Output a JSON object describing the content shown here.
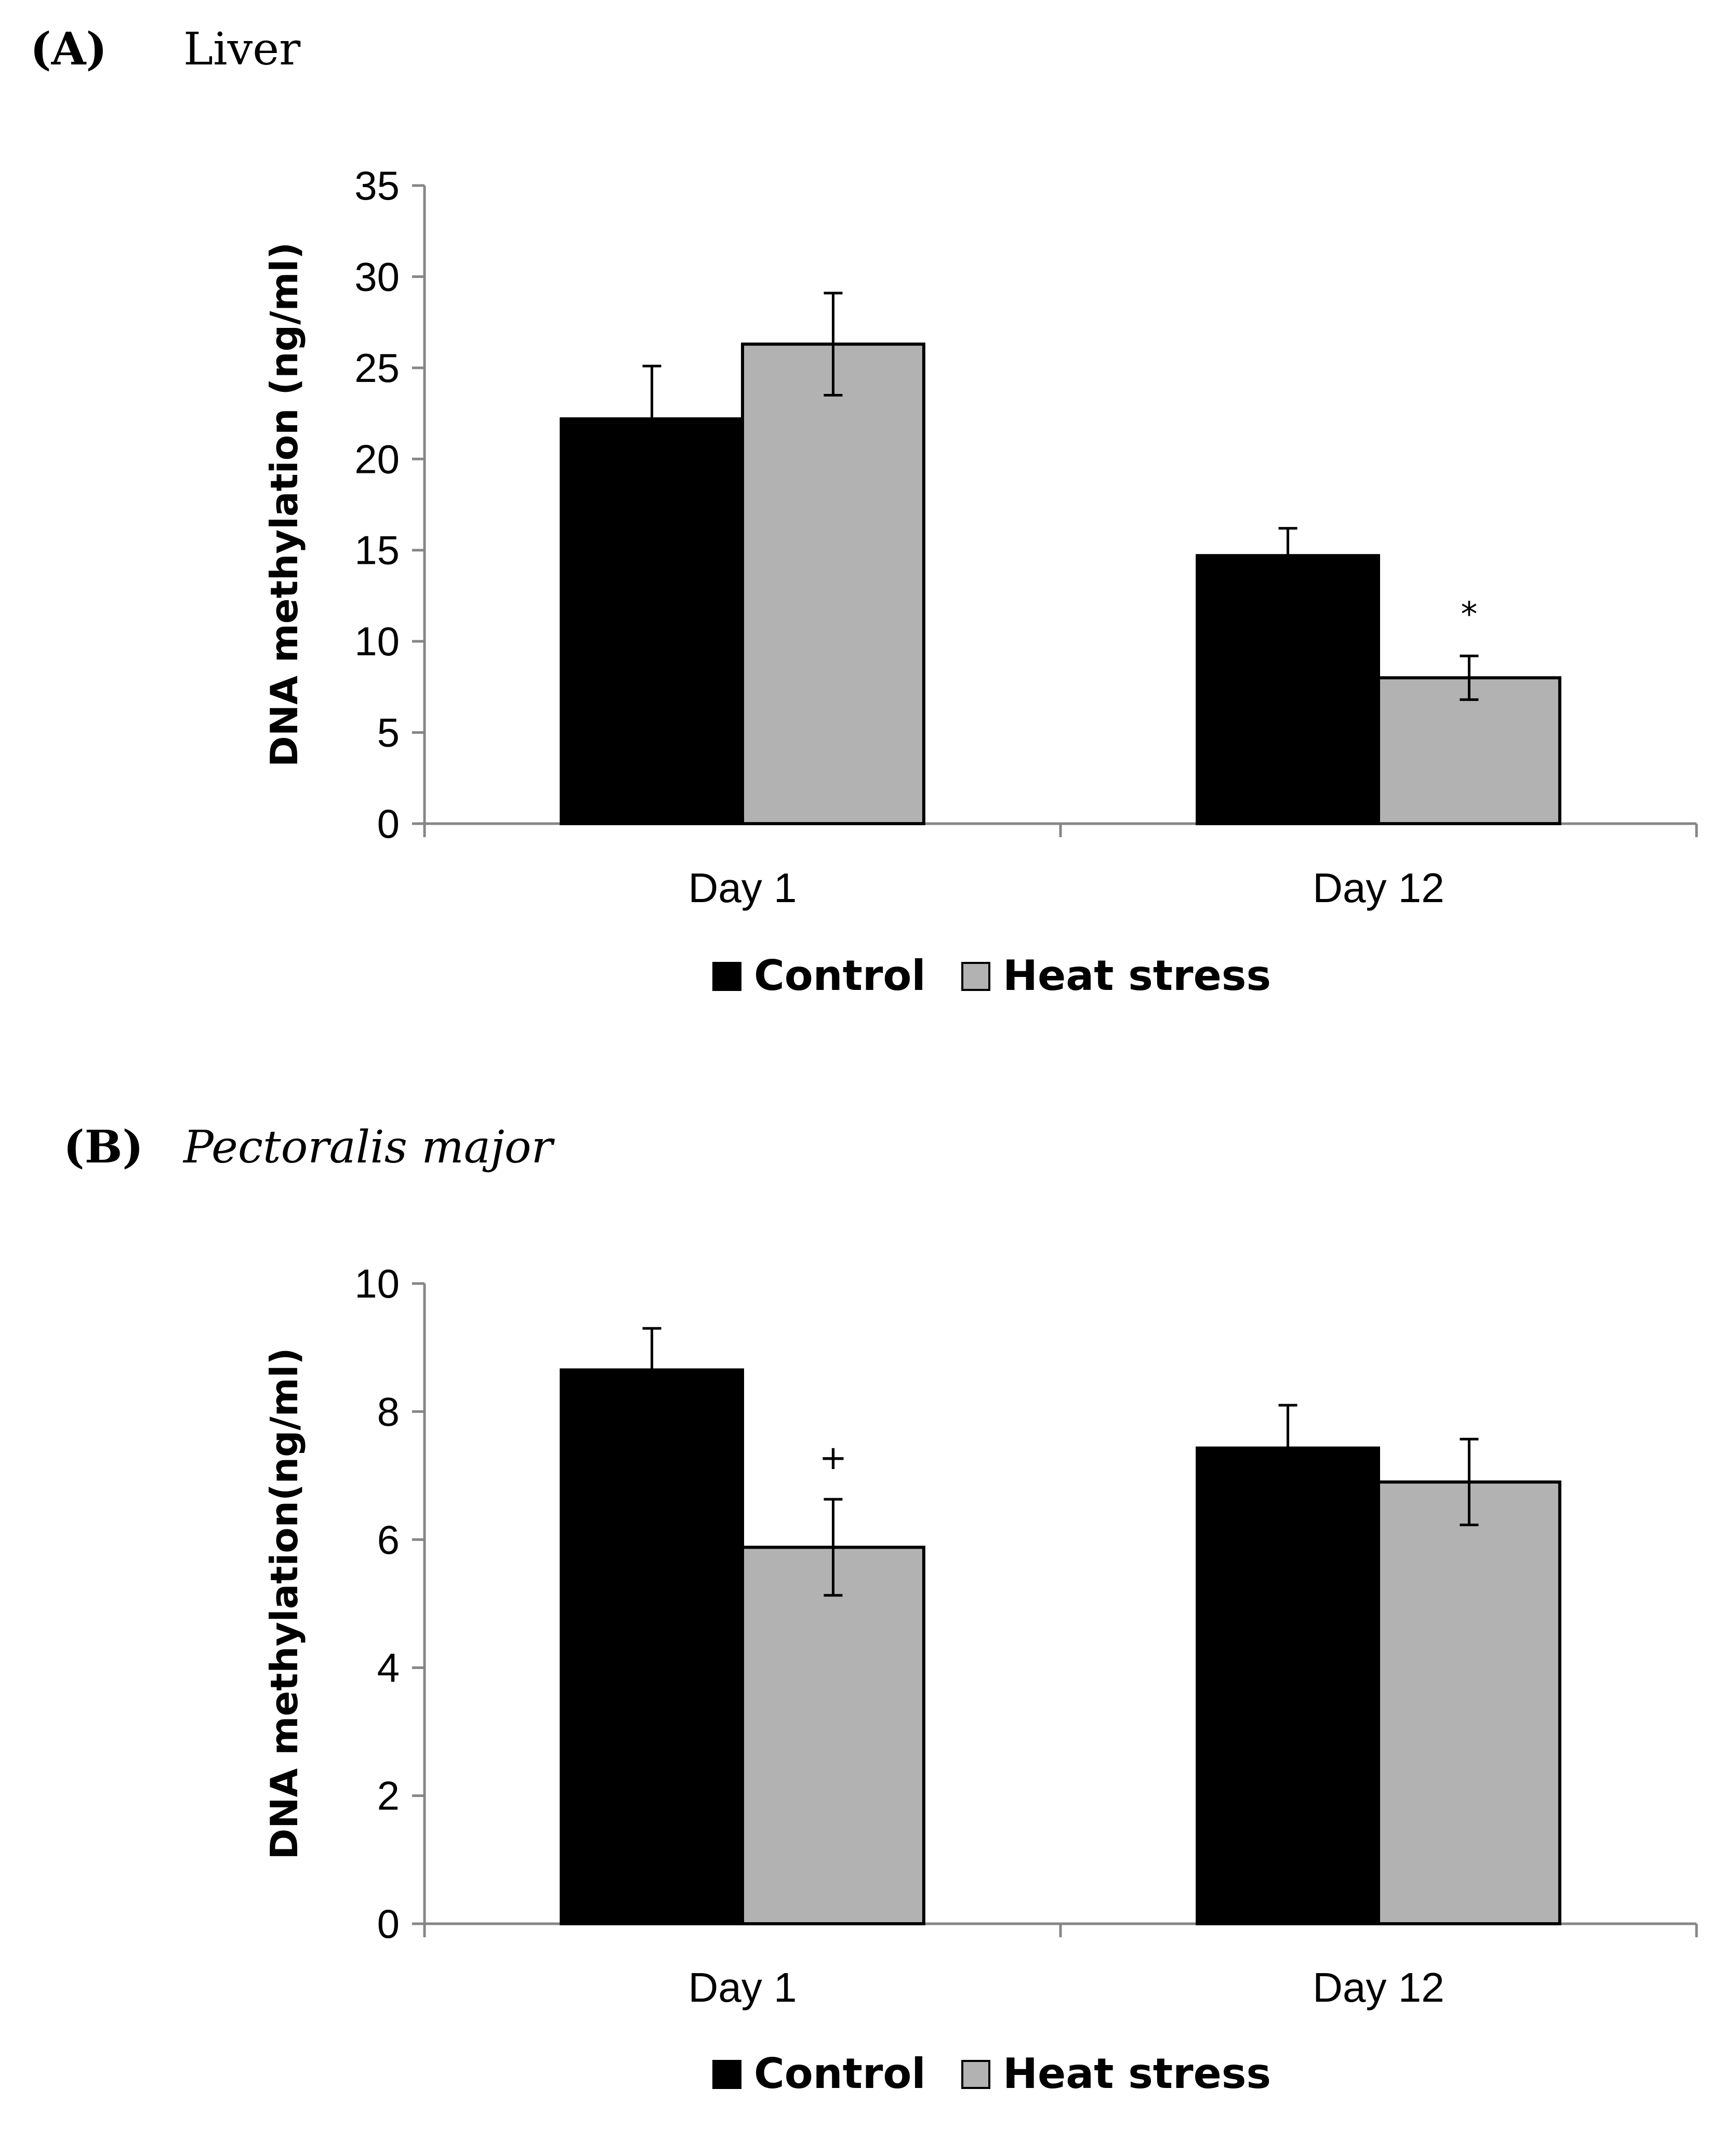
{
  "chart_data": [
    {
      "panel_letter": "(A)",
      "panel_subject": "Liver",
      "subject_italic": false,
      "type": "bar",
      "categories": [
        "Day 1",
        "Day 12"
      ],
      "series": [
        {
          "name": "Control",
          "color": "#000000",
          "values": [
            22.2,
            14.7
          ],
          "errors": [
            2.9,
            1.5
          ]
        },
        {
          "name": "Heat stress",
          "color": "#b2b2b2",
          "values": [
            26.3,
            8.0
          ],
          "errors": [
            2.8,
            1.2
          ]
        }
      ],
      "ylabel": "DNA methylation (ng/ml)",
      "xlabel": "",
      "ylim": [
        0,
        35
      ],
      "yticks": [
        0,
        5,
        10,
        15,
        20,
        25,
        30,
        35
      ],
      "ytick_labels": [
        "0",
        "5",
        "10",
        "15",
        "20",
        "25",
        "30",
        "35"
      ],
      "grid": false,
      "legend_position": "bottom-center",
      "annotations": [
        {
          "text": "*",
          "category_index": 1,
          "series_index": 1
        }
      ]
    },
    {
      "panel_letter": "(B)",
      "panel_subject": "Pectoralis major",
      "subject_italic": true,
      "type": "bar",
      "categories": [
        "Day 1",
        "Day 12"
      ],
      "series": [
        {
          "name": "Control",
          "color": "#000000",
          "values": [
            8.65,
            7.43
          ],
          "errors": [
            0.65,
            0.67
          ]
        },
        {
          "name": "Heat stress",
          "color": "#b2b2b2",
          "values": [
            5.88,
            6.9
          ],
          "errors": [
            0.75,
            0.67
          ]
        }
      ],
      "ylabel": "DNA methylation(ng/ml)",
      "xlabel": "",
      "ylim": [
        0,
        10
      ],
      "yticks": [
        0,
        2,
        4,
        6,
        8,
        10
      ],
      "ytick_labels": [
        "0",
        "2",
        "4",
        "6",
        "8",
        "10"
      ],
      "grid": false,
      "legend_position": "bottom-center",
      "annotations": [
        {
          "text": "+",
          "category_index": 0,
          "series_index": 1
        }
      ]
    }
  ]
}
